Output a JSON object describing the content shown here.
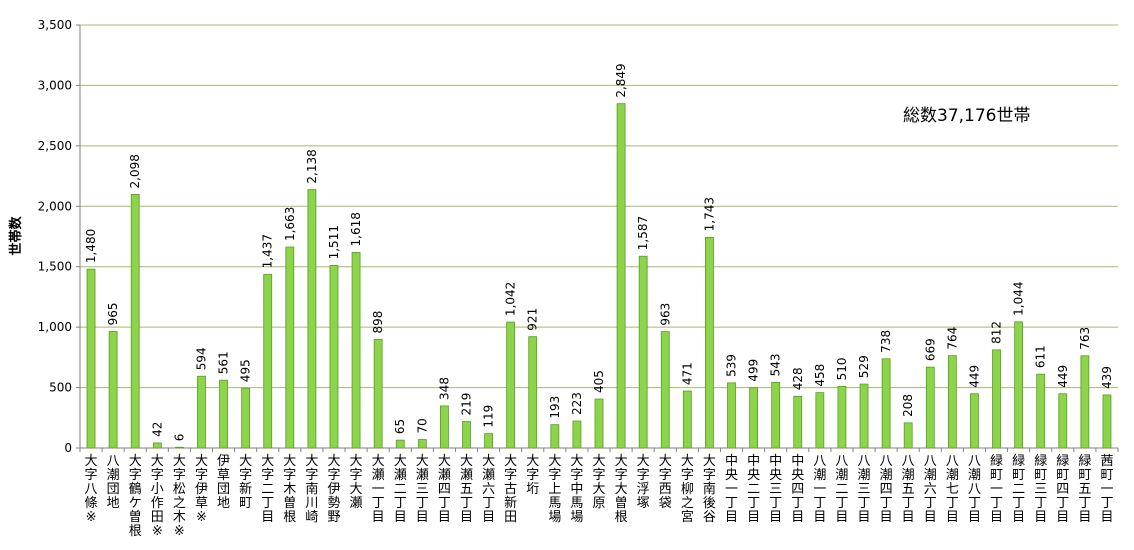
{
  "chart_data": {
    "type": "bar",
    "ylabel": "世帯数",
    "ylim": [
      0,
      3500
    ],
    "yticks": [
      0,
      500,
      1000,
      1500,
      2000,
      2500,
      3000,
      3500
    ],
    "ytick_labels": [
      "0",
      "500",
      "1,000",
      "1,500",
      "2,000",
      "2,500",
      "3,000",
      "3,500"
    ],
    "grid": true,
    "annotation": "総数37,176世帯",
    "colors": {
      "bar_fill": "#8CD44A",
      "bar_stroke": "#5A9A26",
      "grid": "#A8B870",
      "axis": "#808080"
    },
    "categories": [
      "大字八條※",
      "八潮団地",
      "大字鶴ケ曽根",
      "大字小作田※",
      "大字松之木※",
      "大字伊草※",
      "伊草団地",
      "大字新町",
      "大字二丁目",
      "大字木曽根",
      "大字南川崎",
      "大字伊勢野",
      "大字大瀬",
      "大瀬一丁目",
      "大瀬二丁目",
      "大瀬三丁目",
      "大瀬四丁目",
      "大瀬五丁目",
      "大瀬六丁目",
      "大字古新田",
      "大字垳",
      "大字上馬場",
      "大字中馬場",
      "大字大原",
      "大字大曽根",
      "大字浮塚",
      "大字西袋",
      "大字柳之宮",
      "大字南後谷",
      "中央一丁目",
      "中央二丁目",
      "中央三丁目",
      "中央四丁目",
      "八潮一丁目",
      "八潮二丁目",
      "八潮三丁目",
      "八潮四丁目",
      "八潮五丁目",
      "八潮六丁目",
      "八潮七丁目",
      "八潮八丁目",
      "緑町一丁目",
      "緑町二丁目",
      "緑町三丁目",
      "緑町四丁目",
      "緑町五丁目",
      "茜町一丁目"
    ],
    "values": [
      1480,
      965,
      2098,
      42,
      6,
      594,
      561,
      495,
      1437,
      1663,
      2138,
      1511,
      1618,
      898,
      65,
      70,
      348,
      219,
      119,
      1042,
      921,
      193,
      223,
      405,
      2849,
      1587,
      963,
      471,
      1743,
      539,
      499,
      543,
      428,
      458,
      510,
      529,
      738,
      208,
      669,
      764,
      449,
      812,
      1044,
      611,
      449,
      763,
      439
    ],
    "value_labels": [
      "1,480",
      "965",
      "2,098",
      "42",
      "6",
      "594",
      "561",
      "495",
      "1,437",
      "1,663",
      "2,138",
      "1,511",
      "1,618",
      "898",
      "65",
      "70",
      "348",
      "219",
      "119",
      "1,042",
      "921",
      "193",
      "223",
      "405",
      "2,849",
      "1,587",
      "963",
      "471",
      "1,743",
      "539",
      "499",
      "543",
      "428",
      "458",
      "510",
      "529",
      "738",
      "208",
      "669",
      "764",
      "449",
      "812",
      "1,044",
      "611",
      "449",
      "763",
      "439"
    ]
  }
}
